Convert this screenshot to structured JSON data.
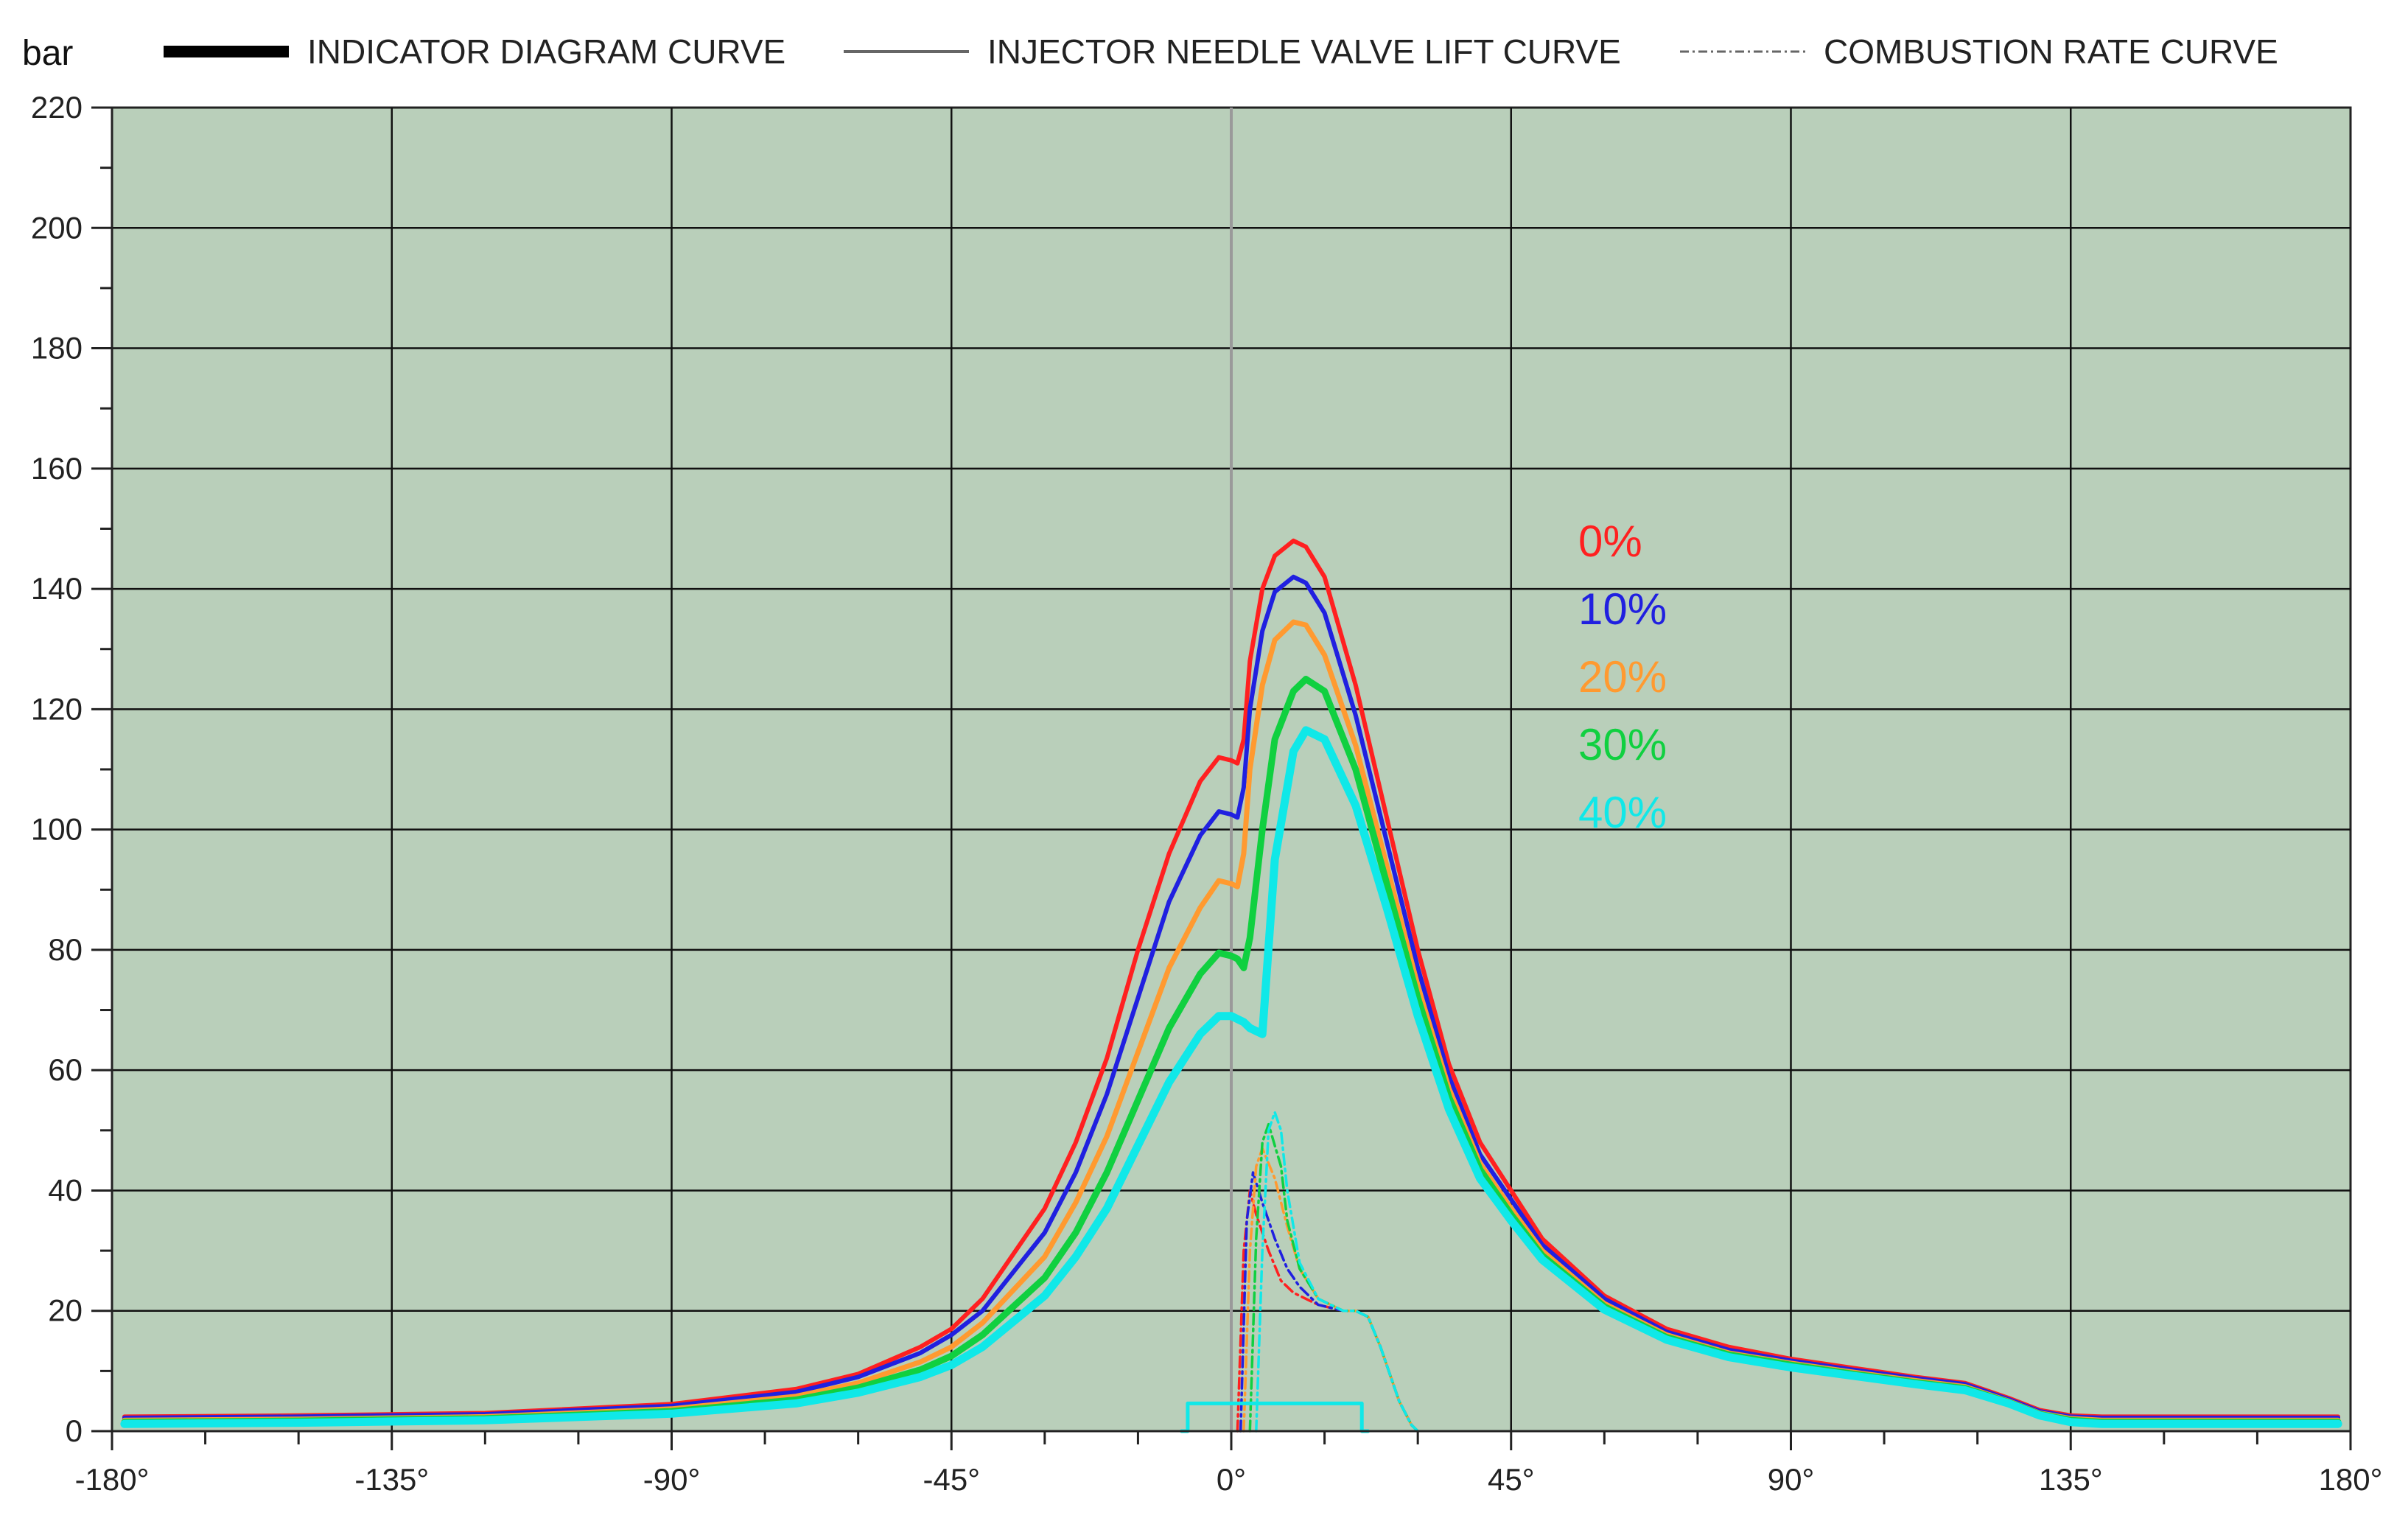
{
  "chart_data": {
    "type": "line",
    "title": "",
    "xlabel": "",
    "ylabel": "bar",
    "xlim": [
      -180,
      180
    ],
    "ylim": [
      0,
      220
    ],
    "x_ticks": [
      -180,
      -135,
      -90,
      -45,
      0,
      45,
      90,
      135,
      180
    ],
    "x_tick_labels": [
      "-180°",
      "-135°",
      "-90°",
      "-45°",
      "0°",
      "45°",
      "90°",
      "135°",
      "180°"
    ],
    "y_ticks": [
      0,
      20,
      40,
      60,
      80,
      100,
      120,
      140,
      160,
      180,
      200,
      220
    ],
    "y_tick_labels": [
      "0",
      "20",
      "40",
      "60",
      "80",
      "100",
      "120",
      "140",
      "160",
      "180",
      "200",
      "220"
    ],
    "grid": true,
    "plot_background": "#b9cfba",
    "legend": {
      "position": "top",
      "entries": [
        {
          "label": "INDICATOR DIAGRAM CURVE",
          "style": "thick-solid",
          "color": "#000000"
        },
        {
          "label": "INJECTOR NEEDLE VALVE LIFT CURVE",
          "style": "thin-solid",
          "color": "#666666"
        },
        {
          "label": "COMBUSTION RATE CURVE",
          "style": "dash-dot",
          "color": "#666666"
        }
      ]
    },
    "annotations": [
      {
        "text": "0%",
        "color": "#ff2020"
      },
      {
        "text": "10%",
        "color": "#2020e0"
      },
      {
        "text": "20%",
        "color": "#ff9a30"
      },
      {
        "text": "30%",
        "color": "#10d040"
      },
      {
        "text": "40%",
        "color": "#10e8e8"
      }
    ],
    "series": [
      {
        "kind": "indicator-diagram",
        "color": "#ff2020",
        "x": [
          -178,
          -150,
          -120,
          -90,
          -70,
          -60,
          -50,
          -45,
          -40,
          -30,
          -25,
          -20,
          -15,
          -10,
          -5,
          -2,
          0,
          1,
          2,
          3,
          5,
          7,
          10,
          12,
          15,
          20,
          25,
          30,
          35,
          40,
          45,
          50,
          60,
          70,
          80,
          90,
          100,
          110,
          118,
          125,
          130,
          135,
          140,
          150,
          160,
          178
        ],
        "y": [
          2.4,
          2.6,
          3,
          4.5,
          7,
          9.5,
          14,
          17,
          22,
          37,
          48,
          62,
          80,
          96,
          108,
          112,
          111.5,
          111,
          115,
          128,
          140,
          145.5,
          148,
          147,
          142,
          124,
          102,
          80,
          61,
          48,
          40,
          32,
          22.5,
          17,
          14,
          12,
          10.5,
          9,
          8,
          5.5,
          3.5,
          2.6,
          2.4,
          2.4,
          2.4,
          2.4
        ]
      },
      {
        "kind": "indicator-diagram",
        "color": "#2020e0",
        "x": [
          -178,
          -150,
          -120,
          -90,
          -70,
          -60,
          -50,
          -45,
          -40,
          -30,
          -25,
          -20,
          -15,
          -10,
          -5,
          -2,
          0,
          1,
          2,
          3,
          5,
          7,
          10,
          12,
          15,
          20,
          25,
          30,
          35,
          40,
          45,
          50,
          60,
          70,
          80,
          90,
          100,
          110,
          118,
          125,
          130,
          135,
          140,
          150,
          160,
          178
        ],
        "y": [
          2.2,
          2.4,
          2.8,
          4.2,
          6.5,
          9,
          13,
          16,
          20,
          33,
          43,
          56,
          72,
          88,
          99,
          103,
          102.5,
          102,
          107,
          120,
          133,
          139.5,
          142,
          141,
          136,
          119,
          98,
          77,
          59,
          46,
          38.5,
          31,
          22,
          16.5,
          13.5,
          11.7,
          10.2,
          8.8,
          7.8,
          5.3,
          3.3,
          2.4,
          2.2,
          2.2,
          2.2,
          2.2
        ]
      },
      {
        "kind": "indicator-diagram",
        "color": "#ff9a30",
        "x": [
          -178,
          -150,
          -120,
          -90,
          -70,
          -60,
          -50,
          -45,
          -40,
          -30,
          -25,
          -20,
          -15,
          -10,
          -5,
          -2,
          0,
          1,
          2,
          3,
          5,
          7,
          10,
          12,
          15,
          20,
          25,
          30,
          35,
          40,
          45,
          50,
          60,
          70,
          80,
          90,
          100,
          110,
          118,
          125,
          130,
          135,
          140,
          150,
          160,
          178
        ],
        "y": [
          1.8,
          2,
          2.4,
          3.7,
          5.8,
          8,
          11.5,
          14,
          18,
          29,
          38,
          49,
          63,
          77,
          87,
          91.5,
          91,
          90.5,
          96,
          110,
          124,
          131.5,
          134.5,
          134,
          129,
          114,
          94,
          74,
          57,
          44.5,
          37,
          30,
          21.2,
          16,
          13,
          11.3,
          9.8,
          8.4,
          7.4,
          5,
          3,
          2.1,
          1.8,
          1.8,
          1.8,
          1.8
        ]
      },
      {
        "kind": "indicator-diagram",
        "color": "#10d040",
        "x": [
          -178,
          -150,
          -120,
          -90,
          -70,
          -60,
          -50,
          -45,
          -40,
          -30,
          -25,
          -20,
          -15,
          -10,
          -5,
          -2,
          0,
          1,
          2,
          3,
          5,
          7,
          10,
          12,
          15,
          20,
          25,
          30,
          35,
          40,
          45,
          50,
          60,
          70,
          80,
          90,
          100,
          110,
          118,
          125,
          130,
          135,
          140,
          150,
          160,
          178
        ],
        "y": [
          1.5,
          1.7,
          2.1,
          3.3,
          5.2,
          7.2,
          10.2,
          12.5,
          16,
          25.5,
          33,
          43,
          55,
          67,
          76,
          79.5,
          79,
          78.5,
          77,
          82,
          100,
          115,
          123,
          125,
          123,
          110,
          91,
          72,
          55.5,
          43.5,
          36,
          29.2,
          20.7,
          15.6,
          12.7,
          11,
          9.5,
          8.1,
          7.1,
          4.8,
          2.8,
          1.8,
          1.5,
          1.5,
          1.5,
          1.5
        ]
      },
      {
        "kind": "indicator-diagram",
        "color": "#10e8e8",
        "x": [
          -178,
          -150,
          -120,
          -90,
          -70,
          -60,
          -50,
          -45,
          -40,
          -30,
          -25,
          -20,
          -15,
          -10,
          -5,
          -2,
          0,
          1,
          2,
          3,
          5,
          7,
          10,
          12,
          15,
          20,
          25,
          30,
          35,
          40,
          45,
          50,
          60,
          70,
          80,
          90,
          100,
          110,
          118,
          125,
          130,
          135,
          140,
          150,
          160,
          178
        ],
        "y": [
          1.2,
          1.4,
          1.8,
          2.9,
          4.6,
          6.4,
          9,
          11,
          14,
          22.5,
          29,
          37,
          47.5,
          58,
          66,
          69,
          69,
          68.5,
          68,
          67,
          66,
          95,
          113,
          116.5,
          115,
          104,
          87,
          69,
          53.5,
          42,
          35,
          28.5,
          20.2,
          15.2,
          12.3,
          10.6,
          9.2,
          7.8,
          6.8,
          4.6,
          2.6,
          1.5,
          1.2,
          1.2,
          1.2,
          1.2
        ]
      },
      {
        "kind": "combustion-rate",
        "color": "#ff2020",
        "x": [
          1,
          2,
          3,
          4,
          6,
          8,
          10,
          14,
          18,
          20,
          22,
          24,
          27,
          29,
          30
        ],
        "y": [
          0,
          30,
          40,
          36,
          30,
          25,
          23,
          21,
          20,
          20,
          19,
          14,
          5,
          1,
          0
        ]
      },
      {
        "kind": "combustion-rate",
        "color": "#2020e0",
        "x": [
          1.5,
          2.5,
          3.5,
          5,
          7,
          9,
          11,
          14,
          18,
          20,
          22,
          24,
          27,
          29,
          30
        ],
        "y": [
          0,
          35,
          43,
          38,
          32,
          27,
          24,
          21,
          20,
          20,
          19,
          14,
          5,
          1,
          0
        ]
      },
      {
        "kind": "combustion-rate",
        "color": "#ff9a30",
        "x": [
          2,
          3,
          4,
          5,
          7,
          9,
          11,
          14,
          18,
          20,
          22,
          24,
          27,
          29,
          30
        ],
        "y": [
          0,
          30,
          44,
          47,
          42,
          34,
          27,
          22,
          20,
          20,
          19,
          14,
          5,
          1,
          0
        ]
      },
      {
        "kind": "combustion-rate",
        "color": "#10d040",
        "x": [
          3,
          4,
          5,
          6,
          8,
          9,
          11,
          14,
          18,
          20,
          22,
          24,
          27,
          29,
          30
        ],
        "y": [
          0,
          32,
          48,
          51,
          44,
          35,
          27,
          22,
          20,
          20,
          19,
          14,
          5,
          1,
          0
        ]
      },
      {
        "kind": "combustion-rate",
        "color": "#10e8e8",
        "x": [
          4,
          5,
          6,
          7,
          8,
          9,
          11,
          14,
          18,
          20,
          22,
          24,
          27,
          29,
          30
        ],
        "y": [
          0,
          30,
          50,
          53,
          50,
          40,
          28,
          22,
          20,
          20,
          19,
          14,
          5,
          1,
          0
        ]
      },
      {
        "kind": "needle-lift",
        "color": "#10e8e8",
        "x": [
          -8,
          -7,
          -7,
          21,
          21,
          22
        ],
        "y": [
          0,
          0,
          4.6,
          4.6,
          0,
          0
        ]
      }
    ]
  }
}
